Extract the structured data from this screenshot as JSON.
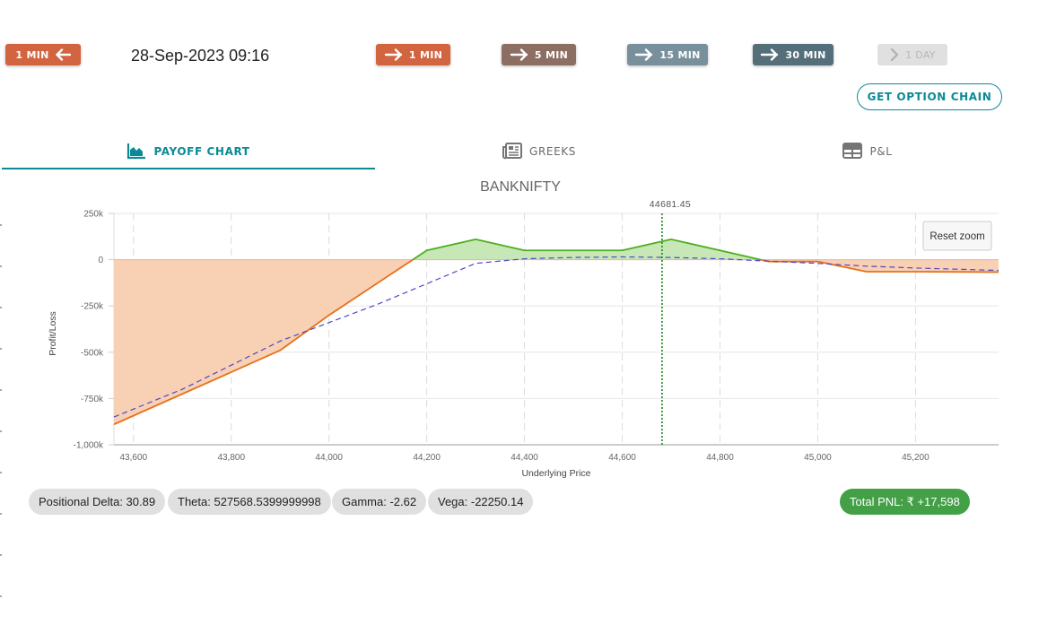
{
  "nav": {
    "back_label": "1 MIN",
    "datetime": "28-Sep-2023 09:16",
    "forward": [
      {
        "label": "1 MIN",
        "color": "#d2643f"
      },
      {
        "label": "5 MIN",
        "color": "#8d6e63"
      },
      {
        "label": "15 MIN",
        "color": "#78909c"
      },
      {
        "label": "30 MIN",
        "color": "#546e7a"
      },
      {
        "label": "1 DAY",
        "color": "#e0e0e0",
        "disabled": true
      }
    ],
    "back_color": "#d2643f"
  },
  "option_chain_button": "GET OPTION CHAIN",
  "tabs": [
    {
      "label": "PAYOFF CHART",
      "icon": "area-chart-icon",
      "active": true
    },
    {
      "label": "GREEKS",
      "icon": "newspaper-icon",
      "active": false
    },
    {
      "label": "P&L",
      "icon": "table-icon",
      "active": false
    }
  ],
  "accent_color": "#0b8a96",
  "chart_data": {
    "type": "area",
    "title": "BANKNIFTY",
    "xlabel": "Underlying Price",
    "ylabel": "Profit/Loss",
    "xlim": [
      43560,
      45370
    ],
    "ylim": [
      -1000000,
      250000
    ],
    "x_ticks": [
      43600,
      43800,
      44000,
      44200,
      44400,
      44600,
      44800,
      45000,
      45200
    ],
    "x_tick_labels": [
      "43,600",
      "43,800",
      "44,000",
      "44,200",
      "44,400",
      "44,600",
      "44,800",
      "45,000",
      "45,200"
    ],
    "y_ticks": [
      250000,
      0,
      -250000,
      -500000,
      -750000,
      -1000000
    ],
    "y_tick_labels": [
      "250k",
      "0",
      "-250k",
      "-500k",
      "-750k",
      "-1,000k"
    ],
    "grid": true,
    "current_price": 44681.45,
    "current_price_label": "44681.45",
    "reset_zoom_label": "Reset zoom",
    "series": [
      {
        "x": [
          43560,
          43900,
          44000,
          44200,
          44300,
          44400,
          44500,
          44600,
          44700,
          44800,
          44900,
          45000,
          45100,
          45200,
          45370
        ],
        "values": [
          -890000,
          -490000,
          -300000,
          50000,
          110000,
          50000,
          50000,
          50000,
          110000,
          50000,
          -10000,
          -10000,
          -65000,
          -65000,
          -67000
        ],
        "color": "#e8701a",
        "profit_fill": "#c5e6b3",
        "profit_line": "#4caf1f",
        "loss_fill": "#f8cdb0"
      },
      {
        "x": [
          43560,
          43700,
          43900,
          44100,
          44300,
          44400,
          44500,
          44600,
          44700,
          44800,
          44900,
          45000,
          45100,
          45200,
          45370
        ],
        "values": [
          -850000,
          -700000,
          -440000,
          -240000,
          -20000,
          5000,
          12000,
          15000,
          12000,
          5000,
          -8000,
          -20000,
          -35000,
          -45000,
          -58000
        ],
        "color": "#4f48c8",
        "dashed": true
      }
    ]
  },
  "stats": {
    "delta": "Positional Delta: 30.89",
    "theta": "Theta: 527568.5399999998",
    "gamma": "Gamma: -2.62",
    "vega": "Vega: -22250.14",
    "total_pnl": "Total PNL: ₹ +17,598"
  }
}
